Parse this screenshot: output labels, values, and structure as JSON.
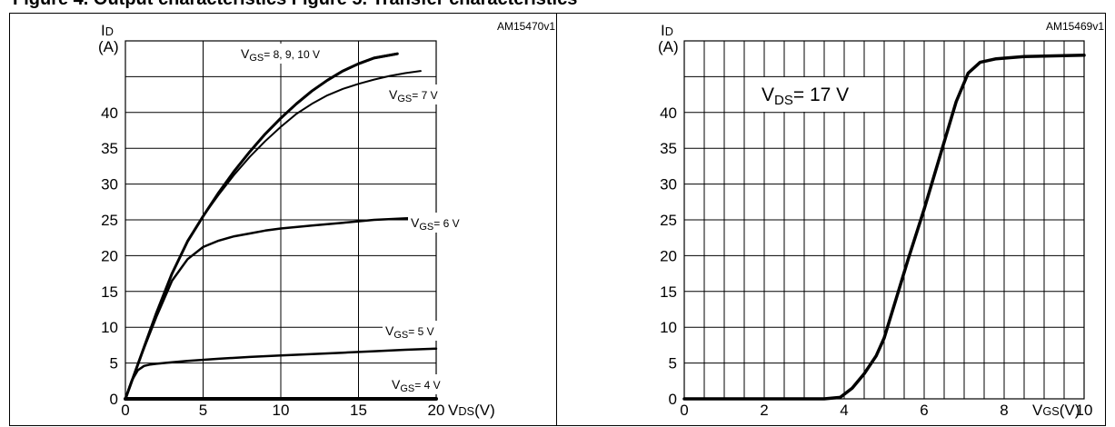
{
  "header": {
    "caption": "Figure 4. Output characteristics                                         Figure 5. Transfer characteristics"
  },
  "chart_data": [
    {
      "type": "line",
      "code": "AM15470v1",
      "ylabel_main": "I",
      "ylabel_sub": "D",
      "yunit": "(A)",
      "xlabel_main": "V",
      "xlabel_sub": "DS",
      "xunit": "(V)",
      "xlim": [
        0,
        20
      ],
      "ylim": [
        0,
        50
      ],
      "x_ticks": [
        "0",
        "5",
        "10",
        "15",
        "20"
      ],
      "y_ticks": [
        "0",
        "5",
        "10",
        "15",
        "20",
        "25",
        "30",
        "35",
        "40"
      ],
      "grid": true,
      "series": [
        {
          "name": "VGS= 8, 9, 10 V",
          "x": [
            0,
            1,
            2,
            3,
            4,
            5,
            6,
            7,
            8,
            9,
            10,
            11,
            12,
            13,
            14,
            15,
            16,
            17.5
          ],
          "y": [
            0,
            6,
            12,
            17.5,
            22,
            25.5,
            28.8,
            31.8,
            34.5,
            37,
            39.2,
            41.2,
            43,
            44.5,
            45.8,
            46.8,
            47.6,
            48.2
          ]
        },
        {
          "name": "VGS= 7 V",
          "x": [
            0,
            1,
            2,
            3,
            4,
            5,
            6,
            7,
            8,
            9,
            10,
            11,
            12,
            13,
            14,
            15,
            16,
            17,
            18,
            19
          ],
          "y": [
            0,
            6,
            12,
            17.5,
            22,
            25.5,
            28.5,
            31.3,
            33.8,
            36,
            38,
            39.8,
            41.2,
            42.4,
            43.3,
            44,
            44.6,
            45.1,
            45.5,
            45.8
          ]
        },
        {
          "name": "VGS= 6 V",
          "x": [
            0,
            1,
            2,
            3,
            4,
            5,
            6,
            7,
            8,
            9,
            10,
            12,
            14,
            16,
            18,
            19.3
          ],
          "y": [
            0,
            6,
            11.5,
            16.5,
            19.5,
            21.2,
            22.1,
            22.7,
            23.1,
            23.5,
            23.8,
            24.2,
            24.6,
            25,
            25.2,
            25.3
          ]
        },
        {
          "name": "VGS= 5 V",
          "x": [
            0,
            0.4,
            0.8,
            1.2,
            1.6,
            2,
            3,
            4,
            6,
            8,
            10,
            12,
            14,
            16,
            18,
            20
          ],
          "y": [
            0,
            2.5,
            4,
            4.6,
            4.8,
            4.9,
            5.1,
            5.3,
            5.6,
            5.85,
            6.05,
            6.25,
            6.45,
            6.65,
            6.85,
            7
          ]
        },
        {
          "name": "VGS= 4 V",
          "x": [
            0,
            5,
            10,
            15,
            20
          ],
          "y": [
            0,
            0,
            0,
            0,
            0
          ]
        }
      ]
    },
    {
      "type": "line",
      "code": "AM15469v1",
      "ylabel_main": "I",
      "ylabel_sub": "D",
      "yunit": "(A)",
      "xlabel_main": "V",
      "xlabel_sub": "GS",
      "xunit": "(V)",
      "xlim": [
        0,
        10
      ],
      "ylim": [
        0,
        50
      ],
      "x_ticks": [
        "0",
        "2",
        "4",
        "6",
        "8",
        "10"
      ],
      "y_ticks": [
        "0",
        "5",
        "10",
        "15",
        "20",
        "25",
        "30",
        "35",
        "40"
      ],
      "grid": true,
      "annotation": "VDS= 17 V",
      "series": [
        {
          "name": "",
          "x": [
            0,
            1,
            2,
            3,
            3.5,
            3.9,
            4.2,
            4.5,
            4.8,
            5,
            5.3,
            5.6,
            6,
            6.4,
            6.8,
            7.1,
            7.4,
            7.8,
            8.5,
            10
          ],
          "y": [
            0,
            0,
            0,
            0,
            0,
            0.2,
            1.5,
            3.5,
            6,
            8.5,
            14,
            19.5,
            26.5,
            34,
            41.5,
            45.5,
            47,
            47.5,
            47.8,
            48
          ]
        }
      ]
    }
  ]
}
